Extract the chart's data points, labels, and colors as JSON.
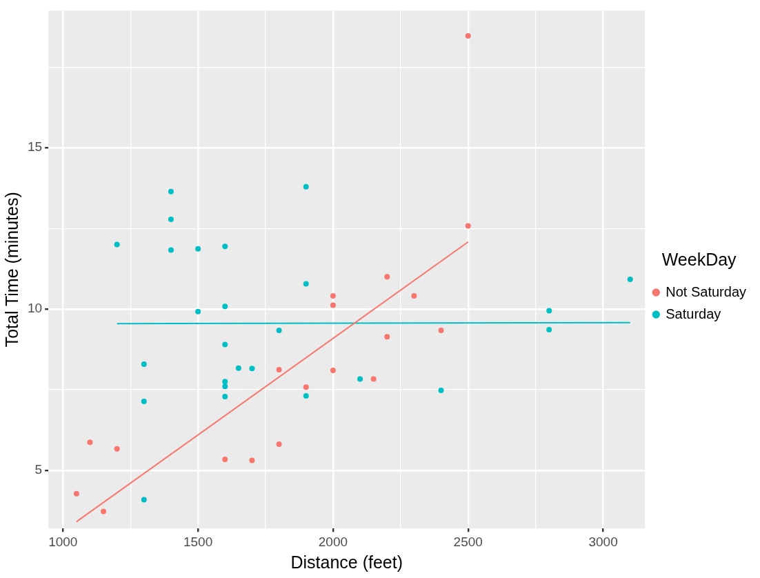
{
  "chart_data": {
    "type": "scatter",
    "xlabel": "Distance (feet)",
    "ylabel": "Total Time (minutes)",
    "legend_title": "WeekDay",
    "legend": "right",
    "grid": true,
    "xlim": [
      946,
      3155
    ],
    "ylim": [
      3.2,
      19.25
    ],
    "xticks": [
      1000,
      {
        "value": 1250,
        "label": null
      },
      1500,
      {
        "value": 1750,
        "label": null
      },
      2000,
      {
        "value": 2250,
        "label": null
      },
      2500,
      {
        "value": 2750,
        "label": null
      },
      3000
    ],
    "yticks": [
      5,
      {
        "value": 7.5,
        "label": null
      },
      10,
      {
        "value": 12.5,
        "label": null
      },
      15,
      {
        "value": 17.5,
        "label": null
      }
    ],
    "series": [
      {
        "name": "Not Saturday",
        "marker": "circle",
        "color": "#f8766d",
        "x": [
          1050,
          1100,
          1150,
          1200,
          1600,
          1700,
          1800,
          1800,
          1900,
          2000,
          2000,
          2000,
          2150,
          2200,
          2200,
          2300,
          2400,
          2500,
          2500
        ],
        "values": [
          4.28,
          5.87,
          3.73,
          5.67,
          5.34,
          5.31,
          5.81,
          8.12,
          7.58,
          10.41,
          10.12,
          8.1,
          7.83,
          11.0,
          9.14,
          10.41,
          9.34,
          18.47,
          12.58
        ]
      },
      {
        "name": "Saturday",
        "marker": "circle",
        "color": "#00bfc4",
        "x": [
          1200,
          1300,
          1300,
          1300,
          1400,
          1400,
          1400,
          1500,
          1500,
          1600,
          1600,
          1600,
          1600,
          1600,
          1600,
          1650,
          1700,
          1800,
          1900,
          1900,
          1900,
          2100,
          2400,
          2800,
          2800,
          3100
        ],
        "values": [
          12.0,
          8.29,
          7.14,
          4.09,
          13.64,
          12.78,
          11.83,
          11.87,
          9.92,
          11.94,
          10.08,
          8.9,
          7.75,
          7.6,
          7.29,
          8.17,
          8.16,
          9.34,
          13.79,
          10.78,
          7.31,
          7.83,
          7.48,
          9.95,
          9.36,
          10.92
        ]
      },
      {
        "type": "line",
        "marker": "none",
        "color": "#f8766d",
        "x": [
          1050,
          2500
        ],
        "values": [
          3.41,
          12.08
        ]
      },
      {
        "type": "line",
        "marker": "none",
        "color": "#00bfc4",
        "x": [
          1200,
          3100
        ],
        "values": [
          9.55,
          9.58
        ]
      }
    ]
  }
}
